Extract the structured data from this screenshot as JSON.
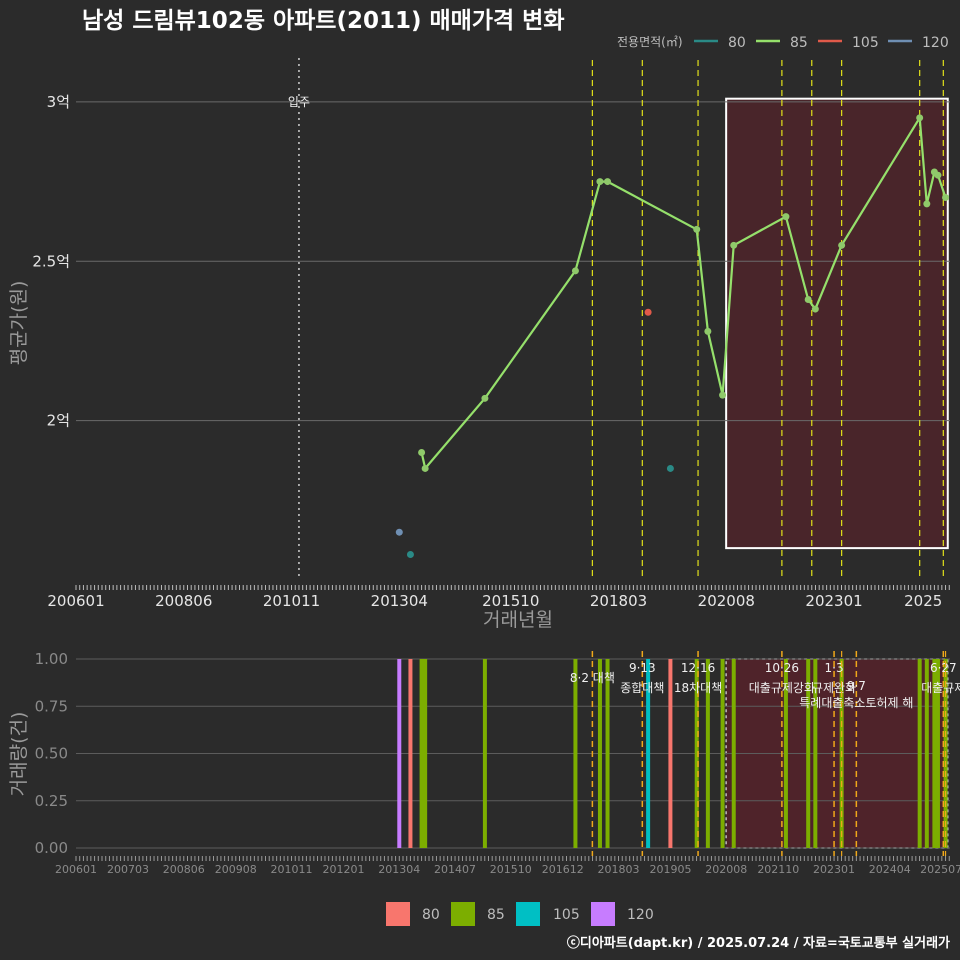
{
  "title": "남성 드림뷰102동 아파트(2011) 매매가격 변화",
  "caption": "ⓒ디아파트(dapt.kr) / 2025.07.24 / 자료=국토교통부 실거래가",
  "colors": {
    "80": "#2a8a86",
    "85": "#95e06b",
    "105": "#e05a4a",
    "120": "#6f8fb3",
    "bar80": "#f8766d",
    "bar85": "#7cae00",
    "bar105": "#00bfc4",
    "bar120": "#c77cff",
    "policy_top": "#e2e21a",
    "policy_bottom": "#f0a81a",
    "shade": "#6e1e2a"
  },
  "chart_data": [
    {
      "type": "line",
      "title": "남성 드림뷰102동 아파트(2011) 매매가격 변화",
      "xlabel": "거래년월",
      "ylabel": "평균가(원)",
      "xlim": [
        2006.0,
        2025.6
      ],
      "ylim": [
        1.5,
        3.1
      ],
      "yticks": [
        {
          "v": 2.0,
          "label": "2억"
        },
        {
          "v": 2.5,
          "label": "2.5억"
        },
        {
          "v": 3.0,
          "label": "3억"
        }
      ],
      "xticks": [
        {
          "v": 2006.0,
          "label": "200601"
        },
        {
          "v": 2008.4167,
          "label": "200806"
        },
        {
          "v": 2010.8333,
          "label": "201011"
        },
        {
          "v": 2013.25,
          "label": "201304"
        },
        {
          "v": 2015.75,
          "label": "201510"
        },
        {
          "v": 2018.1667,
          "label": "201803"
        },
        {
          "v": 2020.5833,
          "label": "202008"
        },
        {
          "v": 2023.0,
          "label": "202301"
        },
        {
          "v": 2025.0,
          "label": "2025"
        }
      ],
      "legend_title": "전용면적(㎡)",
      "legend": [
        "80",
        "85",
        "105",
        "120"
      ],
      "series": [
        {
          "name": "85",
          "points": [
            [
              2013.75,
              1.9
            ],
            [
              2013.83,
              1.85
            ],
            [
              2015.17,
              2.07
            ],
            [
              2017.2,
              2.47
            ],
            [
              2017.75,
              2.75
            ],
            [
              2017.92,
              2.75
            ],
            [
              2019.92,
              2.6
            ],
            [
              2020.17,
              2.28
            ],
            [
              2020.5,
              2.08
            ],
            [
              2020.75,
              2.55
            ],
            [
              2021.92,
              2.64
            ],
            [
              2022.42,
              2.38
            ],
            [
              2022.58,
              2.35
            ],
            [
              2023.17,
              2.55
            ],
            [
              2024.92,
              2.95
            ],
            [
              2025.08,
              2.68
            ],
            [
              2025.25,
              2.78
            ],
            [
              2025.33,
              2.77
            ],
            [
              2025.5,
              2.7
            ]
          ]
        },
        {
          "name": "80",
          "points": [
            [
              2013.5,
              1.58
            ],
            [
              2019.33,
              1.85
            ]
          ]
        },
        {
          "name": "105",
          "points": [
            [
              2018.83,
              2.34
            ]
          ]
        },
        {
          "name": "120",
          "points": [
            [
              2013.25,
              1.65
            ]
          ]
        }
      ],
      "vlines_policy": [
        2017.58,
        2018.7,
        2019.95,
        2021.83,
        2022.5,
        2023.17,
        2024.92,
        2025.45
      ],
      "move_in": {
        "x": 2011.0,
        "label": "입주"
      },
      "shaded_range": {
        "x": [
          2020.58,
          2025.55
        ],
        "y": [
          1.6,
          3.01
        ]
      }
    },
    {
      "type": "bar",
      "xlabel": "",
      "ylabel": "거래량(건)",
      "ylim": [
        0,
        1
      ],
      "yticks": [
        {
          "v": 0,
          "label": "0.00"
        },
        {
          "v": 0.25,
          "label": "0.25"
        },
        {
          "v": 0.5,
          "label": "0.50"
        },
        {
          "v": 0.75,
          "label": "0.75"
        },
        {
          "v": 1.0,
          "label": "1.00"
        }
      ],
      "xticks": [
        {
          "v": 2006.0,
          "label": "200601"
        },
        {
          "v": 2007.1667,
          "label": "200703"
        },
        {
          "v": 2008.4167,
          "label": "200806"
        },
        {
          "v": 2009.5833,
          "label": "200908"
        },
        {
          "v": 2010.8333,
          "label": "201011"
        },
        {
          "v": 2012.0,
          "label": "201201"
        },
        {
          "v": 2013.25,
          "label": "201304"
        },
        {
          "v": 2014.5,
          "label": "201407"
        },
        {
          "v": 2015.75,
          "label": "201510"
        },
        {
          "v": 2016.9167,
          "label": "201612"
        },
        {
          "v": 2018.1667,
          "label": "201803"
        },
        {
          "v": 2019.3333,
          "label": "201905"
        },
        {
          "v": 2020.5833,
          "label": "202008"
        },
        {
          "v": 2021.75,
          "label": "202110"
        },
        {
          "v": 2023.0,
          "label": "202301"
        },
        {
          "v": 2024.25,
          "label": "202404"
        },
        {
          "v": 2025.4,
          "label": "202507"
        }
      ],
      "legend": [
        "80",
        "85",
        "105",
        "120"
      ],
      "bars": [
        {
          "x": 2013.25,
          "v": 1,
          "series": "120"
        },
        {
          "x": 2013.5,
          "v": 1,
          "series": "80"
        },
        {
          "x": 2013.75,
          "v": 1,
          "series": "85"
        },
        {
          "x": 2013.83,
          "v": 1,
          "series": "85"
        },
        {
          "x": 2015.17,
          "v": 1,
          "series": "85"
        },
        {
          "x": 2017.2,
          "v": 1,
          "series": "85"
        },
        {
          "x": 2017.75,
          "v": 1,
          "series": "85"
        },
        {
          "x": 2017.92,
          "v": 1,
          "series": "85"
        },
        {
          "x": 2018.83,
          "v": 1,
          "series": "105"
        },
        {
          "x": 2019.33,
          "v": 1,
          "series": "80"
        },
        {
          "x": 2019.92,
          "v": 1,
          "series": "85"
        },
        {
          "x": 2020.17,
          "v": 1,
          "series": "85"
        },
        {
          "x": 2020.5,
          "v": 1,
          "series": "85"
        },
        {
          "x": 2020.75,
          "v": 1,
          "series": "85"
        },
        {
          "x": 2021.92,
          "v": 1,
          "series": "85"
        },
        {
          "x": 2022.42,
          "v": 1,
          "series": "85"
        },
        {
          "x": 2022.58,
          "v": 1,
          "series": "85"
        },
        {
          "x": 2023.17,
          "v": 1,
          "series": "85"
        },
        {
          "x": 2024.92,
          "v": 1,
          "series": "85"
        },
        {
          "x": 2025.08,
          "v": 1,
          "series": "85"
        },
        {
          "x": 2025.25,
          "v": 1,
          "series": "85"
        },
        {
          "x": 2025.33,
          "v": 1,
          "series": "85"
        },
        {
          "x": 2025.5,
          "v": 1,
          "series": "85"
        }
      ],
      "policy_annotations": [
        {
          "x": 2017.58,
          "date": "",
          "label": "8·2 대책"
        },
        {
          "x": 2018.7,
          "date": "9·13",
          "label": "종합대책"
        },
        {
          "x": 2019.95,
          "date": "12·16",
          "label": "18차대책"
        },
        {
          "x": 2021.83,
          "date": "10·26",
          "label": "대출규제강화"
        },
        {
          "x": 2023.0,
          "date": "1·3",
          "label": "규제완화"
        },
        {
          "x": 2023.5,
          "date": "9·7",
          "label": "특례대출축소토허제 해"
        },
        {
          "x": 2025.45,
          "date": "6·27",
          "label": "대출규제"
        }
      ],
      "shaded_range": {
        "x": [
          2020.58,
          2025.55
        ]
      }
    }
  ]
}
